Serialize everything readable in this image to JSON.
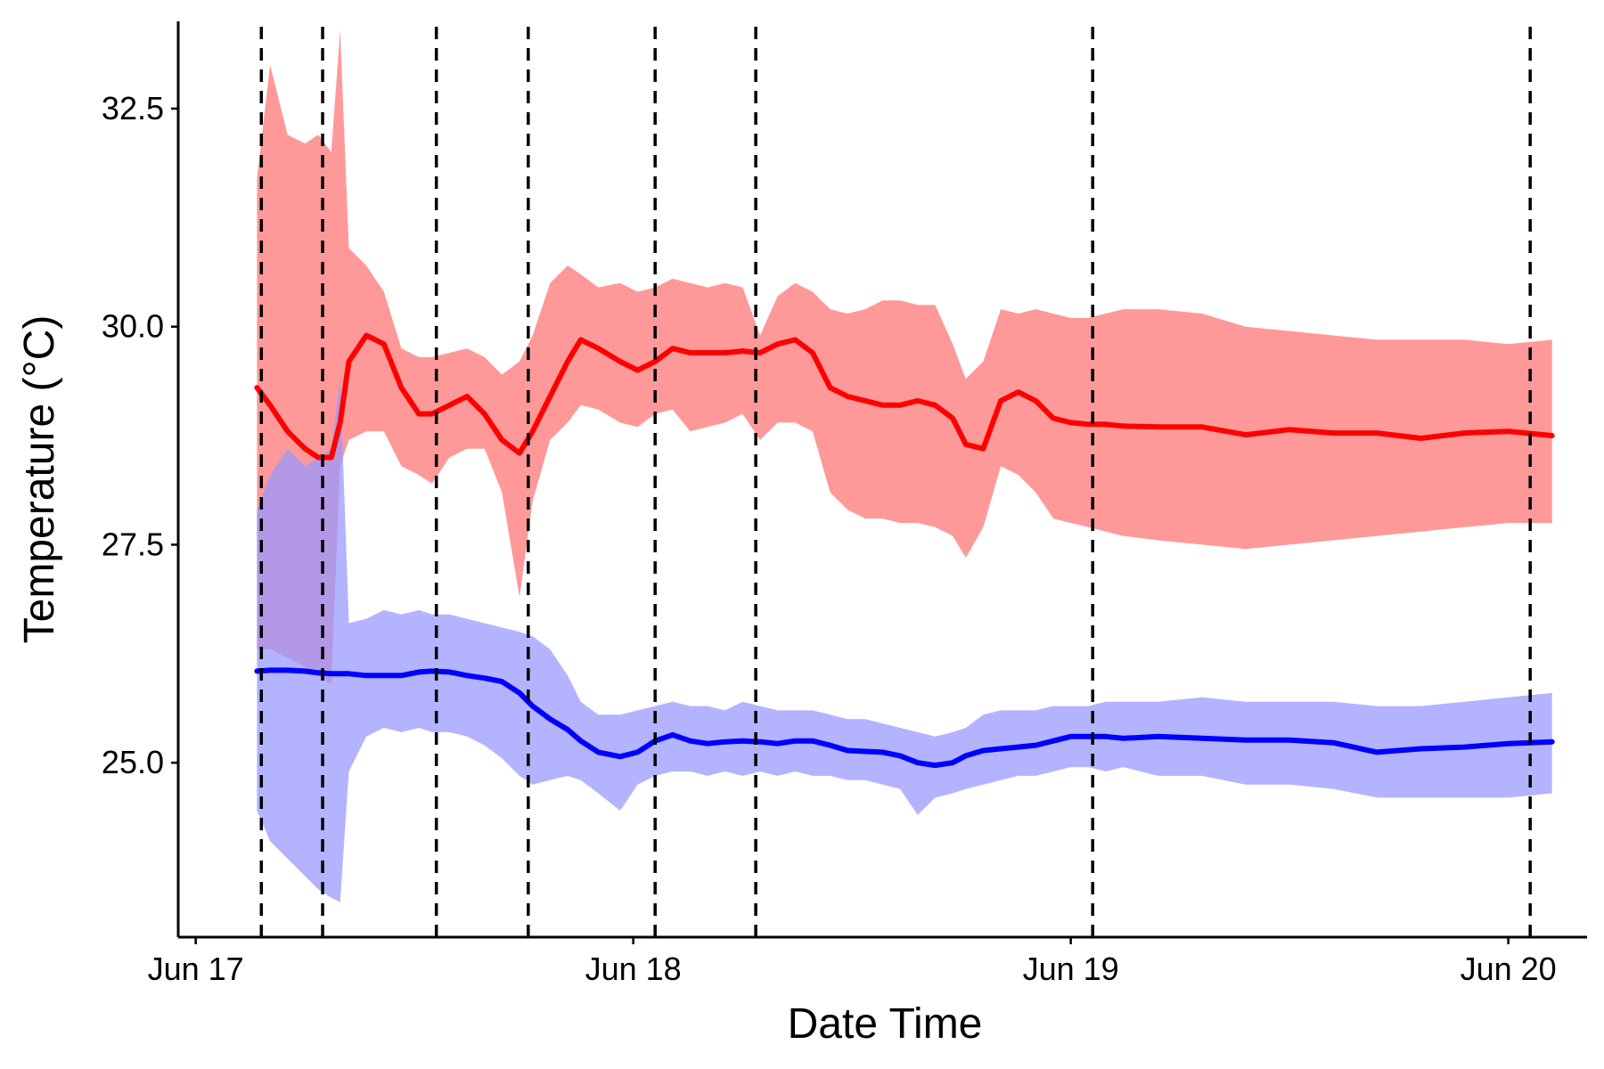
{
  "chart_data": {
    "type": "line",
    "xlabel": "Date Time",
    "ylabel": "Temperature (°C)",
    "x_ticks": [
      "Jun 17",
      "Jun 18",
      "Jun 19",
      "Jun 20"
    ],
    "x_tick_values": [
      0,
      1,
      2,
      3
    ],
    "xlim": [
      -0.04,
      3.18
    ],
    "y_ticks": [
      "25.0",
      "27.5",
      "30.0",
      "32.5"
    ],
    "y_tick_values": [
      25.0,
      27.5,
      30.0,
      32.5
    ],
    "ylim": [
      23.0,
      33.5
    ],
    "grid": false,
    "legend": "none",
    "vlines": [
      0.15,
      0.29,
      0.55,
      0.76,
      1.05,
      1.28,
      2.05,
      3.05
    ],
    "series": [
      {
        "color": "#ff0000",
        "band_color": "#ff9999",
        "x": [
          0.14,
          0.17,
          0.21,
          0.25,
          0.28,
          0.31,
          0.33,
          0.35,
          0.39,
          0.43,
          0.47,
          0.51,
          0.54,
          0.58,
          0.62,
          0.66,
          0.7,
          0.74,
          0.77,
          0.81,
          0.85,
          0.88,
          0.92,
          0.97,
          1.01,
          1.05,
          1.09,
          1.13,
          1.17,
          1.21,
          1.25,
          1.29,
          1.33,
          1.37,
          1.41,
          1.45,
          1.49,
          1.53,
          1.57,
          1.61,
          1.65,
          1.69,
          1.73,
          1.76,
          1.8,
          1.84,
          1.88,
          1.92,
          1.96,
          2.0,
          2.04,
          2.08,
          2.12,
          2.2,
          2.3,
          2.4,
          2.5,
          2.6,
          2.7,
          2.8,
          2.9,
          3.0,
          3.1
        ],
        "values": [
          29.3,
          29.1,
          28.8,
          28.6,
          28.5,
          28.5,
          28.9,
          29.6,
          29.9,
          29.8,
          29.3,
          29.0,
          29.0,
          29.1,
          29.2,
          29.0,
          28.7,
          28.55,
          28.8,
          29.2,
          29.6,
          29.85,
          29.75,
          29.6,
          29.5,
          29.6,
          29.75,
          29.7,
          29.7,
          29.7,
          29.72,
          29.7,
          29.8,
          29.85,
          29.7,
          29.3,
          29.2,
          29.15,
          29.1,
          29.1,
          29.15,
          29.1,
          28.95,
          28.65,
          28.6,
          29.15,
          29.25,
          29.15,
          28.95,
          28.9,
          28.88,
          28.88,
          28.86,
          28.85,
          28.85,
          28.76,
          28.82,
          28.78,
          28.78,
          28.72,
          28.78,
          28.8,
          28.75
        ],
        "lower": [
          26.3,
          26.3,
          26.2,
          26.1,
          26.0,
          25.9,
          28.4,
          28.7,
          28.8,
          28.8,
          28.4,
          28.3,
          28.2,
          28.5,
          28.6,
          28.6,
          28.1,
          26.9,
          28.0,
          28.7,
          28.9,
          29.1,
          29.05,
          28.9,
          28.85,
          29.0,
          29.05,
          28.8,
          28.85,
          28.9,
          29.0,
          28.7,
          28.9,
          28.9,
          28.8,
          28.1,
          27.9,
          27.8,
          27.8,
          27.75,
          27.75,
          27.7,
          27.6,
          27.35,
          27.7,
          28.4,
          28.3,
          28.1,
          27.8,
          27.75,
          27.7,
          27.65,
          27.6,
          27.55,
          27.5,
          27.45,
          27.5,
          27.55,
          27.6,
          27.65,
          27.7,
          27.75,
          27.75
        ],
        "upper": [
          31.7,
          33.0,
          32.2,
          32.1,
          32.2,
          32.0,
          33.4,
          30.9,
          30.7,
          30.4,
          29.75,
          29.65,
          29.65,
          29.7,
          29.75,
          29.65,
          29.45,
          29.6,
          29.9,
          30.5,
          30.7,
          30.6,
          30.45,
          30.5,
          30.4,
          30.45,
          30.55,
          30.5,
          30.45,
          30.5,
          30.45,
          29.9,
          30.35,
          30.5,
          30.4,
          30.2,
          30.15,
          30.2,
          30.3,
          30.3,
          30.25,
          30.25,
          29.8,
          29.4,
          29.6,
          30.2,
          30.15,
          30.2,
          30.15,
          30.1,
          30.1,
          30.15,
          30.2,
          30.2,
          30.15,
          30.0,
          29.95,
          29.9,
          29.85,
          29.85,
          29.85,
          29.8,
          29.85
        ]
      },
      {
        "color": "#0000ff",
        "band_color": "#9999ff",
        "x": [
          0.14,
          0.17,
          0.21,
          0.25,
          0.28,
          0.31,
          0.33,
          0.35,
          0.39,
          0.43,
          0.47,
          0.51,
          0.54,
          0.58,
          0.62,
          0.66,
          0.7,
          0.74,
          0.77,
          0.81,
          0.85,
          0.88,
          0.92,
          0.97,
          1.01,
          1.05,
          1.09,
          1.13,
          1.17,
          1.21,
          1.25,
          1.29,
          1.33,
          1.37,
          1.41,
          1.45,
          1.49,
          1.53,
          1.57,
          1.61,
          1.65,
          1.69,
          1.73,
          1.76,
          1.8,
          1.84,
          1.88,
          1.92,
          1.96,
          2.0,
          2.04,
          2.08,
          2.12,
          2.2,
          2.3,
          2.4,
          2.5,
          2.6,
          2.7,
          2.8,
          2.9,
          3.0,
          3.1
        ],
        "values": [
          26.05,
          26.06,
          26.06,
          26.05,
          26.03,
          26.02,
          26.02,
          26.02,
          26.0,
          26.0,
          26.0,
          26.04,
          26.05,
          26.04,
          26.0,
          25.97,
          25.93,
          25.8,
          25.65,
          25.5,
          25.38,
          25.25,
          25.12,
          25.07,
          25.12,
          25.25,
          25.32,
          25.25,
          25.22,
          25.24,
          25.25,
          25.24,
          25.22,
          25.25,
          25.25,
          25.2,
          25.14,
          25.13,
          25.12,
          25.08,
          25.0,
          24.97,
          25.0,
          25.08,
          25.14,
          25.16,
          25.18,
          25.2,
          25.25,
          25.3,
          25.3,
          25.3,
          25.28,
          25.3,
          25.28,
          25.26,
          25.26,
          25.23,
          25.12,
          25.16,
          25.18,
          25.22,
          25.24
        ],
        "lower": [
          24.45,
          24.1,
          23.9,
          23.7,
          23.55,
          23.45,
          23.4,
          24.9,
          25.3,
          25.4,
          25.35,
          25.4,
          25.35,
          25.35,
          25.3,
          25.2,
          25.05,
          24.85,
          24.75,
          24.8,
          24.85,
          24.8,
          24.65,
          24.45,
          24.75,
          24.85,
          24.9,
          24.9,
          24.85,
          24.9,
          24.85,
          24.9,
          24.85,
          24.9,
          24.85,
          24.85,
          24.8,
          24.8,
          24.75,
          24.7,
          24.4,
          24.6,
          24.65,
          24.7,
          24.75,
          24.8,
          24.85,
          24.85,
          24.9,
          24.95,
          24.95,
          24.9,
          24.95,
          24.85,
          24.85,
          24.75,
          24.75,
          24.7,
          24.6,
          24.6,
          24.6,
          24.6,
          24.65
        ],
        "upper": [
          27.9,
          28.3,
          28.6,
          28.4,
          28.5,
          28.6,
          29.4,
          26.6,
          26.65,
          26.75,
          26.7,
          26.75,
          26.7,
          26.7,
          26.65,
          26.6,
          26.55,
          26.5,
          26.45,
          26.3,
          26.0,
          25.7,
          25.55,
          25.55,
          25.6,
          25.65,
          25.7,
          25.65,
          25.65,
          25.6,
          25.7,
          25.65,
          25.6,
          25.6,
          25.6,
          25.55,
          25.5,
          25.5,
          25.45,
          25.4,
          25.35,
          25.3,
          25.35,
          25.4,
          25.55,
          25.6,
          25.6,
          25.6,
          25.65,
          25.65,
          25.65,
          25.7,
          25.7,
          25.7,
          25.75,
          25.7,
          25.7,
          25.7,
          25.65,
          25.65,
          25.7,
          25.75,
          25.8
        ]
      }
    ]
  }
}
